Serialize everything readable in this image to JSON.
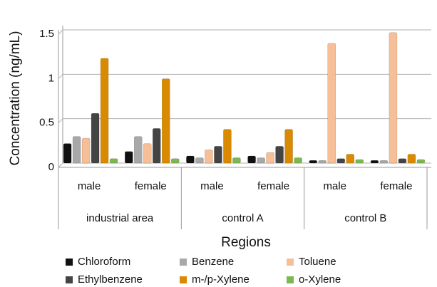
{
  "chart_data": {
    "type": "bar",
    "x_label": "Regions",
    "y_label": "Concentration (ng/mL)",
    "groups": [
      "industrial area",
      "control A",
      "control B"
    ],
    "categories": [
      "male",
      "female",
      "male",
      "female",
      "male",
      "female"
    ],
    "series": [
      {
        "name": "Chloroform",
        "color": "#111111",
        "values": [
          0.22,
          0.13,
          0.08,
          0.08,
          0.03,
          0.03
        ]
      },
      {
        "name": "Benzene",
        "color": "#a8a8a8",
        "values": [
          0.3,
          0.3,
          0.06,
          0.06,
          0.03,
          0.03
        ]
      },
      {
        "name": "Toluene",
        "color": "#f6bf98",
        "values": [
          0.28,
          0.22,
          0.15,
          0.12,
          1.35,
          1.47
        ]
      },
      {
        "name": "Ethylbenzene",
        "color": "#444444",
        "values": [
          0.56,
          0.39,
          0.19,
          0.19,
          0.05,
          0.05
        ]
      },
      {
        "name": "m-/p-Xylene",
        "color": "#d98a00",
        "values": [
          1.18,
          0.95,
          0.38,
          0.38,
          0.1,
          0.1
        ]
      },
      {
        "name": "o-Xylene",
        "color": "#7cb850",
        "values": [
          0.05,
          0.05,
          0.06,
          0.06,
          0.04,
          0.04
        ]
      }
    ],
    "ylim": [
      0,
      1.5
    ],
    "yticks": [
      0,
      0.5,
      1,
      1.5
    ],
    "grid": true,
    "legend": "bottom"
  }
}
